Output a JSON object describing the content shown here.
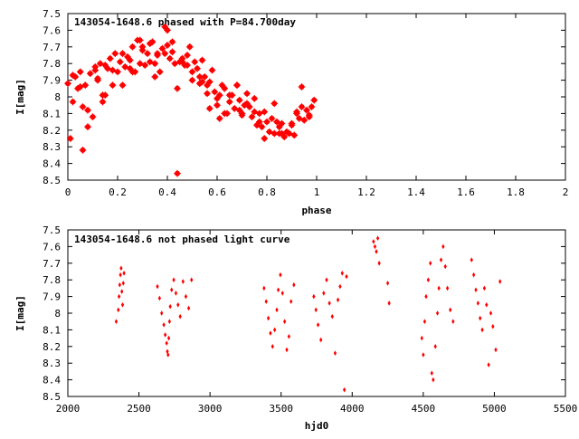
{
  "chart_data": [
    {
      "type": "scatter",
      "title": "143054-1648.6 phased with P=84.700day",
      "xlabel": "phase",
      "ylabel": "I[mag]",
      "xlim": [
        0,
        2
      ],
      "ylim": [
        7.5,
        8.5
      ],
      "y_inverted": true,
      "x_ticks": [
        "0",
        "0.2",
        "0.4",
        "0.6",
        "0.8",
        "1",
        "1.2",
        "1.4",
        "1.6",
        "1.8",
        "2"
      ],
      "y_ticks": [
        "7.5",
        "7.6",
        "7.7",
        "7.8",
        "7.9",
        "8",
        "8.1",
        "8.2",
        "8.3",
        "8.4",
        "8.5"
      ],
      "color": "#ff0000",
      "series": [
        {
          "x": [
            0.0,
            0.01,
            0.02,
            0.03,
            0.04,
            0.05,
            0.06,
            0.07,
            0.08,
            0.09,
            0.1,
            0.11,
            0.12,
            0.13,
            0.14,
            0.15,
            0.16,
            0.17,
            0.18,
            0.19,
            0.2,
            0.21,
            0.22,
            0.23,
            0.24,
            0.25,
            0.26,
            0.27,
            0.28,
            0.29,
            0.3,
            0.31,
            0.32,
            0.33,
            0.34,
            0.35,
            0.36,
            0.37,
            0.38,
            0.39,
            0.4,
            0.41,
            0.42,
            0.43,
            0.44,
            0.45,
            0.46,
            0.47,
            0.48,
            0.49,
            0.5,
            0.51,
            0.52,
            0.53,
            0.54,
            0.55,
            0.56,
            0.57,
            0.58,
            0.59,
            0.6,
            0.61,
            0.62,
            0.63,
            0.64,
            0.65,
            0.66,
            0.67,
            0.68,
            0.69,
            0.7,
            0.71,
            0.72,
            0.73,
            0.74,
            0.75,
            0.76,
            0.77,
            0.78,
            0.79,
            0.8,
            0.81,
            0.82,
            0.83,
            0.84,
            0.85,
            0.86,
            0.87,
            0.88,
            0.89,
            0.9,
            0.91,
            0.92,
            0.93,
            0.94,
            0.95,
            0.96,
            0.97,
            0.98,
            0.99,
            0.05,
            0.08,
            0.12,
            0.15,
            0.18,
            0.22,
            0.25,
            0.29,
            0.33,
            0.36,
            0.39,
            0.42,
            0.46,
            0.5,
            0.53,
            0.57,
            0.61,
            0.65,
            0.69,
            0.72,
            0.75,
            0.79,
            0.83,
            0.86,
            0.9,
            0.94,
            0.97,
            0.44,
            0.4,
            0.3,
            0.02,
            0.06,
            0.11,
            0.14,
            0.56,
            0.63,
            0.68,
            0.77,
            0.85,
            0.92,
            0.35,
            0.26,
            0.48,
            0.54,
            0.6,
            0.7
          ],
          "y": [
            7.92,
            8.25,
            8.03,
            7.88,
            7.95,
            7.85,
            8.32,
            7.93,
            8.08,
            7.86,
            8.12,
            7.84,
            7.9,
            7.8,
            8.03,
            7.81,
            7.83,
            7.77,
            7.93,
            7.74,
            7.85,
            7.79,
            7.74,
            7.82,
            7.76,
            7.83,
            7.7,
            7.85,
            7.66,
            7.8,
            7.7,
            7.81,
            7.74,
            7.79,
            7.67,
            7.8,
            7.75,
            7.85,
            7.71,
            7.74,
            7.69,
            7.77,
            7.73,
            7.8,
            7.95,
            7.79,
            7.77,
            7.81,
            7.75,
            7.7,
            7.9,
            7.79,
            7.83,
            7.88,
            7.78,
            7.88,
            7.93,
            7.91,
            7.84,
            7.97,
            8.05,
            7.99,
            7.93,
            7.95,
            8.1,
            8.03,
            7.99,
            8.07,
            7.93,
            8.02,
            8.11,
            8.05,
            7.98,
            8.06,
            8.12,
            8.09,
            8.17,
            8.1,
            8.18,
            8.25,
            8.15,
            8.21,
            8.13,
            8.22,
            8.15,
            8.22,
            8.16,
            8.24,
            8.21,
            8.22,
            8.17,
            8.23,
            8.1,
            8.13,
            8.06,
            8.14,
            8.08,
            8.12,
            8.06,
            8.02,
            7.94,
            8.18,
            7.89,
            7.99,
            7.84,
            7.93,
            7.78,
            7.66,
            7.68,
            7.74,
            7.58,
            7.67,
            7.79,
            7.85,
            7.92,
            8.07,
            8.13,
            7.99,
            8.08,
            8.04,
            8.01,
            8.09,
            8.04,
            8.22,
            8.16,
            7.94,
            8.11,
            8.46,
            7.6,
            7.72,
            7.87,
            8.06,
            7.82,
            7.99,
            7.98,
            8.1,
            7.93,
            8.15,
            8.18,
            8.09,
            7.88,
            7.85,
            7.81,
            7.91,
            8.01,
            8.1
          ]
        }
      ]
    },
    {
      "type": "scatter",
      "title": "143054-1648.6 not phased light curve",
      "xlabel": "hjd0",
      "ylabel": "I[mag]",
      "xlim": [
        2000,
        5500
      ],
      "ylim": [
        7.5,
        8.5
      ],
      "y_inverted": true,
      "x_ticks": [
        "2000",
        "2500",
        "3000",
        "3500",
        "4000",
        "4500",
        "5000",
        "5500"
      ],
      "y_ticks": [
        "7.5",
        "7.6",
        "7.7",
        "7.8",
        "7.9",
        "8",
        "8.1",
        "8.2",
        "8.3",
        "8.4",
        "8.5"
      ],
      "color": "#ff0000",
      "series": [
        {
          "x": [
            2340,
            2355,
            2360,
            2365,
            2370,
            2375,
            2380,
            2385,
            2390,
            2395,
            2630,
            2645,
            2660,
            2675,
            2685,
            2695,
            2700,
            2705,
            2710,
            2715,
            2720,
            2730,
            2745,
            2760,
            2775,
            2790,
            2810,
            2830,
            2850,
            2870,
            3380,
            3395,
            3410,
            3425,
            3440,
            3455,
            3470,
            3480,
            3495,
            3510,
            3525,
            3540,
            3555,
            3570,
            3590,
            3730,
            3745,
            3760,
            3780,
            3800,
            3820,
            3840,
            3860,
            3880,
            3900,
            3915,
            3930,
            3945,
            3960,
            4150,
            4160,
            4170,
            4180,
            4190,
            4250,
            4260,
            4490,
            4500,
            4510,
            4520,
            4535,
            4550,
            4560,
            4570,
            4585,
            4600,
            4610,
            4625,
            4640,
            4655,
            4670,
            4690,
            4710,
            4840,
            4855,
            4870,
            4885,
            4900,
            4915,
            4930,
            4945,
            4960,
            4975,
            4990,
            5010,
            5040
          ],
          "y": [
            8.05,
            7.98,
            7.9,
            7.83,
            7.77,
            7.73,
            7.87,
            7.95,
            7.82,
            7.76,
            7.84,
            7.91,
            8.0,
            8.07,
            8.13,
            8.18,
            8.23,
            8.25,
            8.15,
            8.05,
            7.96,
            7.86,
            7.8,
            7.88,
            7.95,
            8.02,
            7.81,
            7.9,
            7.97,
            7.8,
            7.85,
            7.93,
            8.03,
            8.12,
            8.2,
            8.1,
            7.98,
            7.86,
            7.77,
            7.88,
            8.05,
            8.22,
            8.14,
            7.93,
            7.83,
            7.9,
            7.98,
            8.07,
            8.16,
            7.88,
            7.8,
            7.94,
            8.02,
            8.24,
            7.92,
            7.84,
            7.76,
            8.46,
            7.78,
            7.57,
            7.6,
            7.63,
            7.55,
            7.7,
            7.82,
            7.94,
            8.15,
            8.25,
            8.05,
            7.9,
            7.8,
            7.7,
            8.36,
            8.4,
            8.2,
            8.0,
            7.85,
            7.68,
            7.6,
            7.72,
            7.85,
            7.98,
            8.05,
            7.68,
            7.77,
            7.86,
            7.94,
            8.03,
            8.1,
            7.85,
            7.95,
            8.31,
            8.0,
            8.08,
            8.22,
            7.81
          ]
        }
      ]
    }
  ]
}
